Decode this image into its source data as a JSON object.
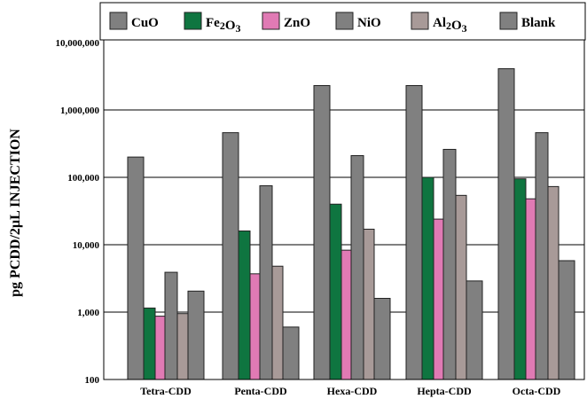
{
  "chart_data": {
    "type": "bar",
    "title": "",
    "xlabel": "",
    "ylabel": "pg PCDD/2µL INJECTION",
    "yscale": "log",
    "ylim": [
      100,
      10000000
    ],
    "yticks": [
      100,
      1000,
      10000,
      100000,
      1000000,
      10000000
    ],
    "ytick_labels": [
      "100",
      "1,000",
      "10,000",
      "100,000",
      "1,000,000",
      "10,000,000"
    ],
    "grid": true,
    "legend_position": "top",
    "categories": [
      "Tetra-CDD",
      "Penta-CDD",
      "Hexa-CDD",
      "Hepta-CDD",
      "Octa-CDD"
    ],
    "series": [
      {
        "name": "CuO",
        "sub": [
          "Cu",
          "O",
          ""
        ],
        "color": "#808080",
        "values": [
          200000,
          460000,
          2300000,
          2300000,
          4100000
        ]
      },
      {
        "name": "Fe2O3",
        "color": "#0f7540",
        "values": [
          1150,
          16000,
          40000,
          100000,
          95000
        ]
      },
      {
        "name": "ZnO",
        "color": "#e07ab4",
        "values": [
          870,
          3700,
          8300,
          24000,
          48000
        ]
      },
      {
        "name": "NiO",
        "color": "#808080",
        "values": [
          3900,
          75000,
          210000,
          260000,
          460000
        ]
      },
      {
        "name": "Al2O3",
        "color": "#a89a98",
        "values": [
          950,
          4800,
          17000,
          54000,
          73000
        ]
      },
      {
        "name": "Blank",
        "color": "#808080",
        "values": [
          2050,
          600,
          1600,
          2900,
          5800
        ]
      }
    ]
  }
}
